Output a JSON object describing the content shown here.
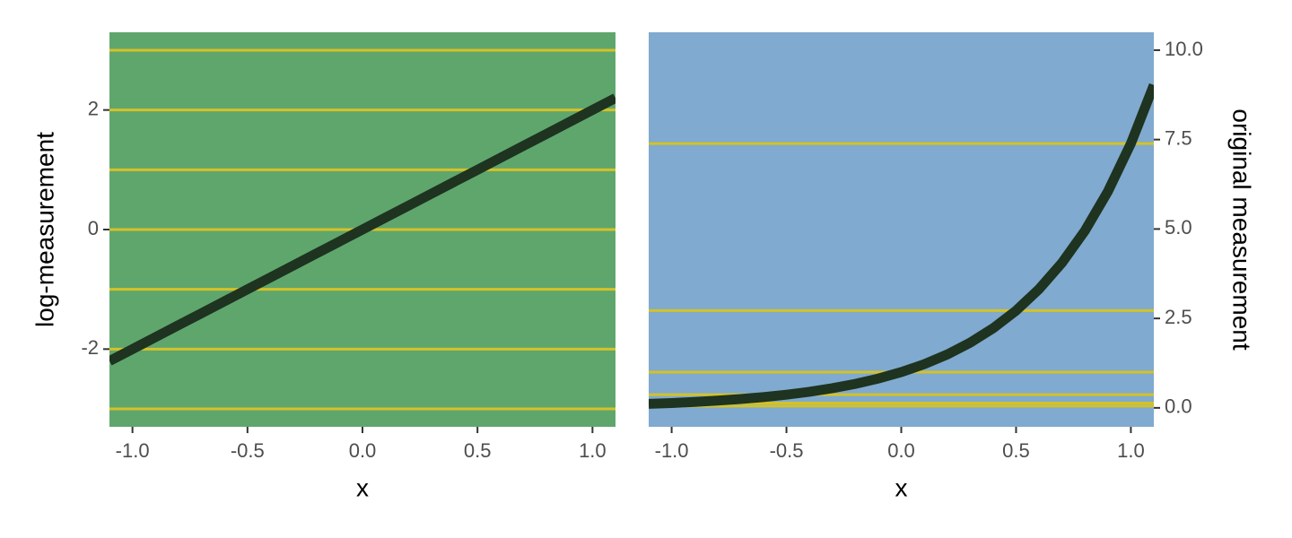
{
  "chart_data": [
    {
      "type": "line",
      "ylabel": "log-measurement",
      "xlabel": "x",
      "yaxis_position": "left",
      "background": "#5fa66d",
      "color": "#1e3320",
      "hline_color": "#d4c227",
      "x": [
        -1.1,
        -1.0,
        -0.9,
        -0.8,
        -0.7,
        -0.6,
        -0.5,
        -0.4,
        -0.3,
        -0.2,
        -0.1,
        0,
        0.1,
        0.2,
        0.3,
        0.4,
        0.5,
        0.6,
        0.7,
        0.8,
        0.9,
        1.0,
        1.1
      ],
      "values": [
        -2.2,
        -2.0,
        -1.8,
        -1.6,
        -1.4,
        -1.2,
        -1.0,
        -0.8,
        -0.6,
        -0.4,
        -0.2,
        0,
        0.2,
        0.4,
        0.6,
        0.8,
        1.0,
        1.2,
        1.4,
        1.6,
        1.8,
        2.0,
        2.2
      ],
      "hlines": [
        -3,
        -2,
        -1,
        0,
        1,
        2,
        3
      ],
      "xlim": [
        -1.1,
        1.1
      ],
      "ylim": [
        -3.3,
        3.3
      ],
      "xticks": [
        {
          "value": -1,
          "label": "-1.0"
        },
        {
          "value": -0.5,
          "label": "-0.5"
        },
        {
          "value": 0,
          "label": "0.0"
        },
        {
          "value": 0.5,
          "label": "0.5"
        },
        {
          "value": 1,
          "label": "1.0"
        }
      ],
      "yticks": [
        -2,
        0,
        2
      ]
    },
    {
      "type": "line",
      "ylabel": "original measurement",
      "xlabel": "x",
      "yaxis_position": "right",
      "background": "#80aacf",
      "color": "#1e3320",
      "hline_color": "#d4c227",
      "x": [
        -1.1,
        -1.0,
        -0.9,
        -0.8,
        -0.7,
        -0.6,
        -0.5,
        -0.4,
        -0.3,
        -0.2,
        -0.1,
        0,
        0.1,
        0.2,
        0.3,
        0.4,
        0.5,
        0.6,
        0.7,
        0.8,
        0.9,
        1.0,
        1.1
      ],
      "values": [
        0.111,
        0.135,
        0.165,
        0.202,
        0.247,
        0.301,
        0.368,
        0.449,
        0.549,
        0.67,
        0.819,
        1,
        1.221,
        1.492,
        1.822,
        2.226,
        2.718,
        3.32,
        4.055,
        4.953,
        6.05,
        7.389,
        9.025
      ],
      "hlines": [
        0.05,
        0.135,
        0.368,
        1,
        2.718,
        7.389
      ],
      "xlim": [
        -1.1,
        1.1
      ],
      "ylim": [
        -0.53,
        10.5
      ],
      "xticks": [
        {
          "value": -1,
          "label": "-1.0"
        },
        {
          "value": -0.5,
          "label": "-0.5"
        },
        {
          "value": 0,
          "label": "0.0"
        },
        {
          "value": 0.5,
          "label": "0.5"
        },
        {
          "value": 1,
          "label": "1.0"
        }
      ],
      "yticks": [
        {
          "value": 0,
          "label": "0.0"
        },
        {
          "value": 2.5,
          "label": "2.5"
        },
        {
          "value": 5,
          "label": "5.0"
        },
        {
          "value": 7.5,
          "label": "7.5"
        },
        {
          "value": 10,
          "label": "10.0"
        }
      ]
    }
  ]
}
